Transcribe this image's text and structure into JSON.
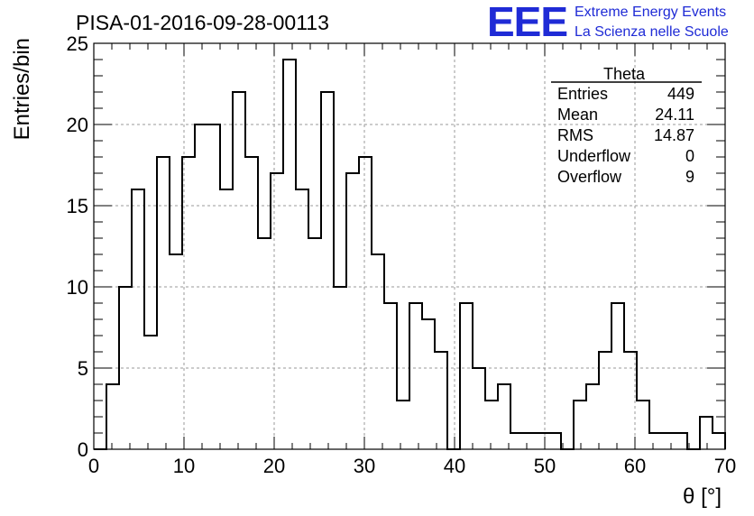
{
  "header": {
    "run_title": "PISA-01-2016-09-28-00113",
    "logo_text": "EEE",
    "logo_line1": "Extreme Energy Events",
    "logo_line2": "La Scienza nelle Scuole"
  },
  "stats": {
    "name": "Theta",
    "rows": [
      {
        "label": "Entries",
        "value": "449"
      },
      {
        "label": "Mean",
        "value": "24.11"
      },
      {
        "label": "RMS",
        "value": "14.87"
      },
      {
        "label": "Underflow",
        "value": "0"
      },
      {
        "label": "Overflow",
        "value": "9"
      }
    ]
  },
  "chart_data": {
    "type": "histogram",
    "xlabel": "θ [°]",
    "ylabel": "Entries/bin",
    "xlim": [
      0,
      70
    ],
    "ylim": [
      0,
      25
    ],
    "xticks": [
      "0",
      "10",
      "20",
      "30",
      "40",
      "50",
      "60",
      "70"
    ],
    "yticks": [
      "0",
      "5",
      "10",
      "15",
      "20",
      "25"
    ],
    "grid": true,
    "bin_width": 1.4,
    "values": [
      0,
      4,
      10,
      16,
      7,
      18,
      12,
      18,
      20,
      20,
      16,
      22,
      18,
      13,
      17,
      24,
      16,
      13,
      22,
      10,
      17,
      18,
      12,
      9,
      3,
      9,
      8,
      6,
      0,
      9,
      5,
      3,
      4,
      1,
      1,
      1,
      1,
      0,
      3,
      4,
      6,
      9,
      6,
      3,
      1,
      1,
      1,
      0,
      2,
      1
    ]
  }
}
